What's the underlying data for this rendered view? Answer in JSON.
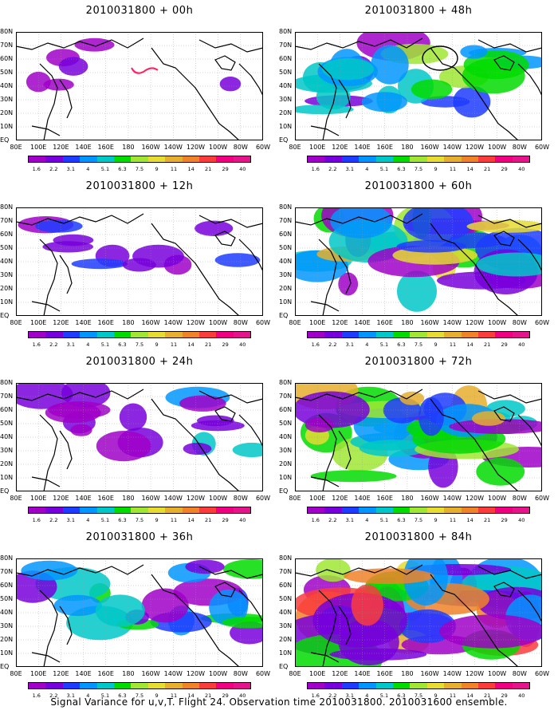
{
  "panels": [
    {
      "title": "2010031800 + 00h",
      "intensity": 0
    },
    {
      "title": "2010031800 + 48h",
      "intensity": 4
    },
    {
      "title": "2010031800 + 12h",
      "intensity": 1
    },
    {
      "title": "2010031800 + 60h",
      "intensity": 5
    },
    {
      "title": "2010031800 + 24h",
      "intensity": 2
    },
    {
      "title": "2010031800 + 72h",
      "intensity": 6
    },
    {
      "title": "2010031800 + 36h",
      "intensity": 3
    },
    {
      "title": "2010031800 + 84h",
      "intensity": 7
    }
  ],
  "lat_labels": [
    "80N",
    "70N",
    "60N",
    "50N",
    "40N",
    "30N",
    "20N",
    "10N",
    "EQ"
  ],
  "lon_labels": [
    "80E",
    "100E",
    "120E",
    "140E",
    "160E",
    "180",
    "160W",
    "140W",
    "120W",
    "100W",
    "80W",
    "60W"
  ],
  "colorbar": {
    "levels": [
      "1.6",
      "2.2",
      "3.1",
      "4",
      "5.1",
      "6.3",
      "7.5",
      "9",
      "11",
      "14",
      "21",
      "29",
      "40"
    ],
    "colors": [
      "#a000c8",
      "#7800dc",
      "#1e3cff",
      "#0096ff",
      "#00c8c8",
      "#00dc00",
      "#a0e632",
      "#e6dc32",
      "#e6af2d",
      "#f08228",
      "#fa3c3c",
      "#f00082",
      "#e6148c"
    ]
  },
  "caption": "Signal Variance for u,v,T. Flight 24. Observation time 2010031800. 2010031600 ensemble."
}
